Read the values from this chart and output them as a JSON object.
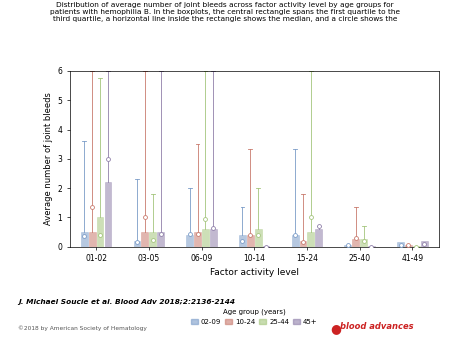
{
  "title_lines": [
    "Distribution of average number of joint bleeds across factor activity level by age groups for",
    "patients with hemophilia B. In the boxplots, the central rectangle spans the first quartile to the",
    "third quartile, a horizontal line inside the rectangle shows the median, and a circle shows the"
  ],
  "xlabel": "Factor activity level",
  "ylabel": "Average number of joint bleeds",
  "ylim": [
    0,
    6
  ],
  "yticks": [
    0,
    1,
    2,
    3,
    4,
    5,
    6
  ],
  "x_labels": [
    "01-02",
    "03-05",
    "06-09",
    "10-14",
    "15-24",
    "25-40",
    "41-49"
  ],
  "legend_labels": [
    "02-09",
    "10-24",
    "25-44",
    "45+"
  ],
  "legend_title": "Age group (years)",
  "colors": [
    "#7B9CC8",
    "#C97B6E",
    "#A4C57C",
    "#9080AA"
  ],
  "box_data": {
    "01-02": {
      "02-09": {
        "q1": 0.0,
        "median": 0.0,
        "q3": 0.5,
        "mean": 0.35,
        "wlo": 0.0,
        "whi": 3.6
      },
      "10-24": {
        "q1": 0.0,
        "median": 0.0,
        "q3": 0.5,
        "mean": 1.35,
        "wlo": 0.0,
        "whi": 6.0
      },
      "25-44": {
        "q1": 0.0,
        "median": 0.0,
        "q3": 1.0,
        "mean": 0.4,
        "wlo": 0.0,
        "whi": 5.75
      },
      "45+": {
        "q1": 0.0,
        "median": 0.0,
        "q3": 2.2,
        "mean": 3.0,
        "wlo": 0.0,
        "whi": 6.0
      }
    },
    "03-05": {
      "02-09": {
        "q1": 0.0,
        "median": 0.0,
        "q3": 0.2,
        "mean": 0.15,
        "wlo": 0.0,
        "whi": 2.3
      },
      "10-24": {
        "q1": 0.0,
        "median": 0.0,
        "q3": 0.5,
        "mean": 1.0,
        "wlo": 0.0,
        "whi": 6.0
      },
      "25-44": {
        "q1": 0.0,
        "median": 0.0,
        "q3": 0.5,
        "mean": 0.22,
        "wlo": 0.0,
        "whi": 1.8
      },
      "45+": {
        "q1": 0.0,
        "median": 0.0,
        "q3": 0.5,
        "mean": 0.45,
        "wlo": 0.0,
        "whi": 6.0
      }
    },
    "06-09": {
      "02-09": {
        "q1": 0.0,
        "median": 0.0,
        "q3": 0.4,
        "mean": 0.45,
        "wlo": 0.0,
        "whi": 2.0
      },
      "10-24": {
        "q1": 0.0,
        "median": 0.0,
        "q3": 0.5,
        "mean": 0.45,
        "wlo": 0.0,
        "whi": 3.5
      },
      "25-44": {
        "q1": 0.0,
        "median": 0.0,
        "q3": 0.6,
        "mean": 0.95,
        "wlo": 0.0,
        "whi": 6.0
      },
      "45+": {
        "q1": 0.0,
        "median": 0.0,
        "q3": 0.6,
        "mean": 0.65,
        "wlo": 0.0,
        "whi": 6.0
      }
    },
    "10-14": {
      "02-09": {
        "q1": 0.0,
        "median": 0.0,
        "q3": 0.4,
        "mean": 0.2,
        "wlo": 0.0,
        "whi": 1.35
      },
      "10-24": {
        "q1": 0.0,
        "median": 0.0,
        "q3": 0.4,
        "mean": 0.4,
        "wlo": 0.0,
        "whi": 3.35
      },
      "25-44": {
        "q1": 0.0,
        "median": 0.0,
        "q3": 0.6,
        "mean": 0.4,
        "wlo": 0.0,
        "whi": 2.0
      },
      "45+": {
        "q1": 0.0,
        "median": 0.0,
        "q3": 0.0,
        "mean": 0.0,
        "wlo": 0.0,
        "whi": 0.0
      }
    },
    "15-24": {
      "02-09": {
        "q1": 0.0,
        "median": 0.0,
        "q3": 0.4,
        "mean": 0.4,
        "wlo": 0.0,
        "whi": 3.35
      },
      "10-24": {
        "q1": 0.0,
        "median": 0.0,
        "q3": 0.2,
        "mean": 0.15,
        "wlo": 0.0,
        "whi": 1.8
      },
      "25-44": {
        "q1": 0.0,
        "median": 0.0,
        "q3": 0.5,
        "mean": 1.0,
        "wlo": 0.0,
        "whi": 6.0
      },
      "45+": {
        "q1": 0.0,
        "median": 0.0,
        "q3": 0.6,
        "mean": 0.7,
        "wlo": 0.0,
        "whi": 0.7
      }
    },
    "25-40": {
      "02-09": {
        "q1": 0.0,
        "median": 0.0,
        "q3": 0.05,
        "mean": 0.05,
        "wlo": 0.0,
        "whi": 0.0
      },
      "10-24": {
        "q1": 0.0,
        "median": 0.0,
        "q3": 0.25,
        "mean": 0.3,
        "wlo": 0.0,
        "whi": 1.35
      },
      "25-44": {
        "q1": 0.0,
        "median": 0.0,
        "q3": 0.25,
        "mean": 0.2,
        "wlo": 0.0,
        "whi": 0.7
      },
      "45+": {
        "q1": 0.0,
        "median": 0.0,
        "q3": 0.0,
        "mean": 0.0,
        "wlo": 0.0,
        "whi": 0.0
      }
    },
    "41-49": {
      "02-09": {
        "q1": 0.0,
        "median": 0.0,
        "q3": 0.15,
        "mean": 0.05,
        "wlo": 0.0,
        "whi": 0.0
      },
      "10-24": {
        "q1": 0.0,
        "median": 0.0,
        "q3": 0.05,
        "mean": 0.05,
        "wlo": 0.0,
        "whi": 0.0
      },
      "25-44": {
        "q1": 0.0,
        "median": 0.0,
        "q3": 0.0,
        "mean": 0.0,
        "wlo": 0.0,
        "whi": 0.0
      },
      "45+": {
        "q1": 0.0,
        "median": 0.0,
        "q3": 0.2,
        "mean": 0.1,
        "wlo": 0.0,
        "whi": 0.0
      }
    }
  },
  "citation": "J. Michael Soucie et al. Blood Adv 2018;2:2136-2144",
  "copyright": "©2018 by American Society of Hematology"
}
